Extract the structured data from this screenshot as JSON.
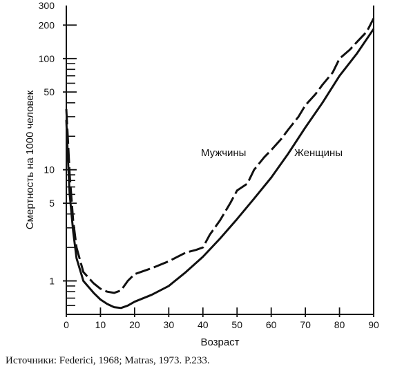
{
  "chart_data": {
    "type": "line",
    "xlabel": "Возраст",
    "ylabel": "Смертность на 1000 человек",
    "xlim": [
      0,
      90
    ],
    "ylim": [
      0.5,
      300
    ],
    "yscale": "log",
    "grid": false,
    "x_ticks": [
      0,
      10,
      20,
      30,
      40,
      50,
      60,
      70,
      80,
      90
    ],
    "y_tick_labels": [
      1,
      5,
      10,
      50,
      100,
      200,
      300
    ],
    "y_minor_ticks": [
      0.6,
      0.7,
      0.8,
      0.9,
      2,
      3,
      4,
      6,
      7,
      8,
      9,
      20,
      30,
      40,
      60,
      70,
      80,
      90
    ],
    "series": [
      {
        "name": "Мужчины",
        "style": "dashed",
        "x": [
          0,
          0.5,
          1,
          2,
          3,
          5,
          8,
          10,
          12,
          14,
          16,
          18,
          20,
          25,
          30,
          35,
          38,
          40,
          42,
          45,
          48,
          50,
          53,
          55,
          58,
          60,
          63,
          65,
          68,
          70,
          73,
          75,
          78,
          80,
          83,
          85,
          88,
          90
        ],
        "y": [
          35,
          18,
          9,
          3.5,
          2,
          1.2,
          0.95,
          0.85,
          0.8,
          0.78,
          0.82,
          1.0,
          1.15,
          1.3,
          1.5,
          1.8,
          1.9,
          2.0,
          2.6,
          3.5,
          5.0,
          6.5,
          7.5,
          10,
          13,
          15,
          19,
          23,
          30,
          38,
          48,
          58,
          75,
          100,
          120,
          140,
          175,
          230
        ]
      },
      {
        "name": "Женщины",
        "style": "solid",
        "x": [
          0,
          0.5,
          1,
          2,
          3,
          5,
          8,
          10,
          12,
          14,
          16,
          18,
          20,
          25,
          30,
          35,
          40,
          45,
          50,
          55,
          60,
          65,
          70,
          75,
          80,
          85,
          90
        ],
        "y": [
          28,
          12,
          6,
          2.8,
          1.6,
          1.0,
          0.78,
          0.68,
          0.62,
          0.58,
          0.57,
          0.6,
          0.65,
          0.75,
          0.9,
          1.2,
          1.65,
          2.4,
          3.6,
          5.5,
          8.5,
          14,
          24,
          40,
          70,
          110,
          185
        ]
      }
    ]
  },
  "source_note": "Источники: Federici, 1968; Matras, 1973. P.233."
}
